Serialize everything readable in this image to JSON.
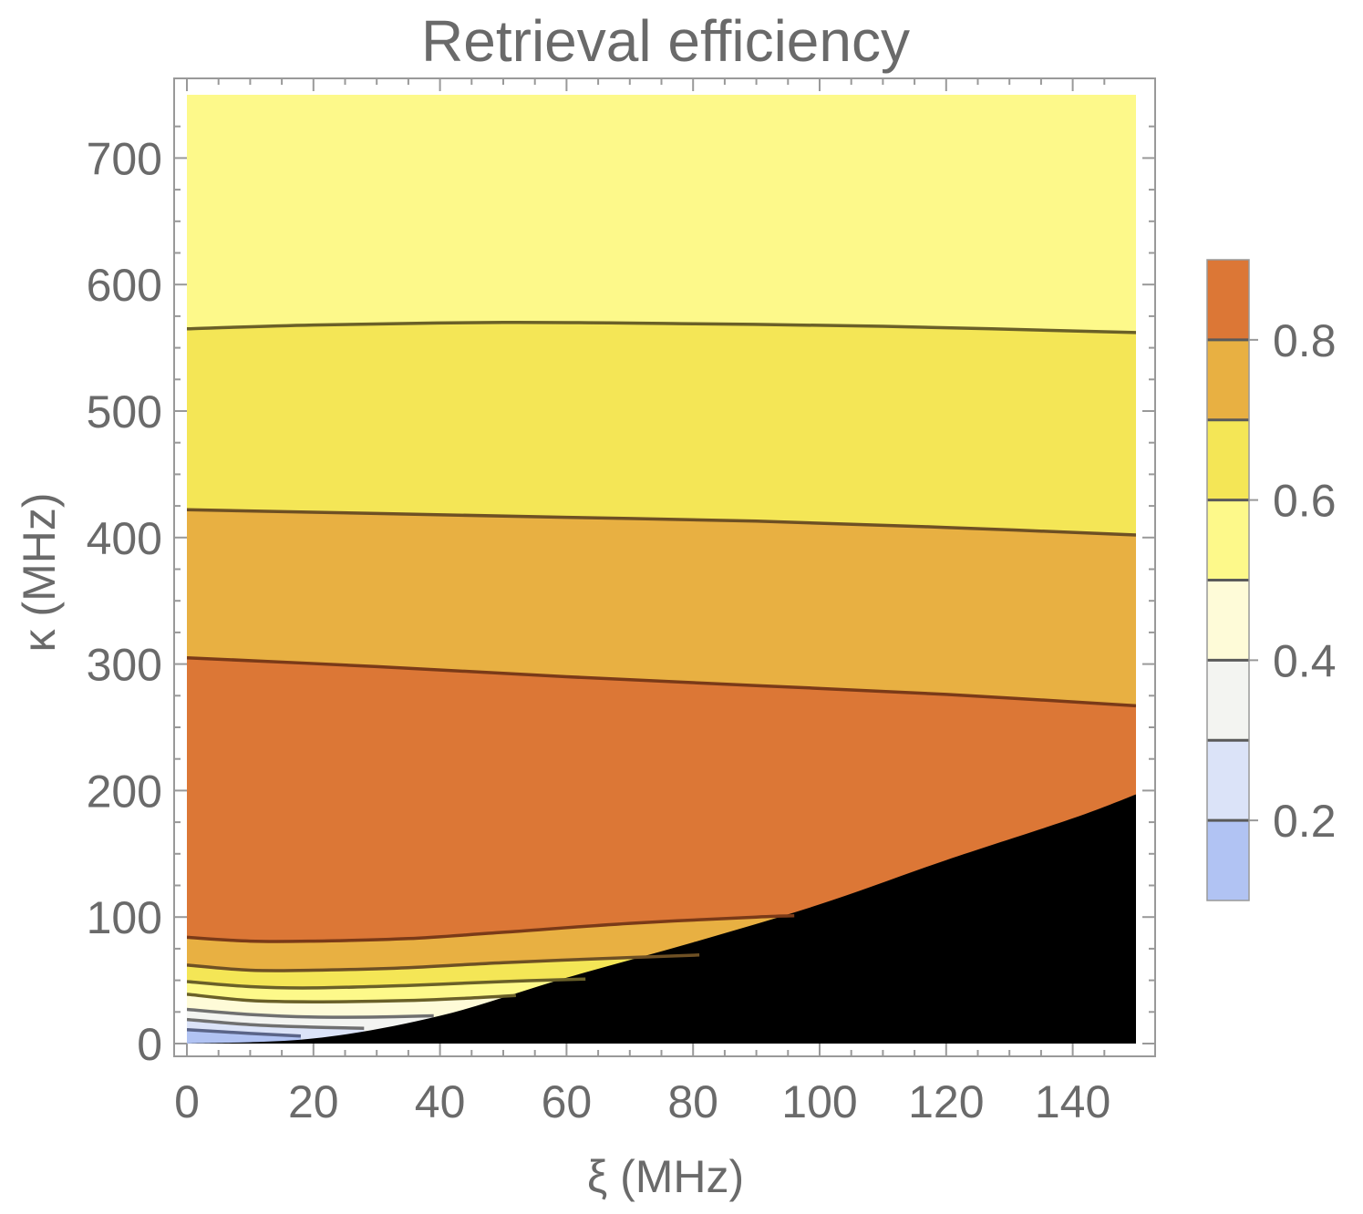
{
  "chart_data": {
    "type": "contour",
    "title": "Retrieval efficiency",
    "xlabel": "ξ (MHz)",
    "ylabel": "κ (MHz)",
    "xlim": [
      0,
      150
    ],
    "ylim": [
      0,
      750
    ],
    "x_ticks": [
      0,
      20,
      40,
      60,
      80,
      100,
      120,
      140
    ],
    "y_ticks": [
      0,
      100,
      200,
      300,
      400,
      500,
      600,
      700
    ],
    "contour_levels": [
      0.2,
      0.3,
      0.4,
      0.5,
      0.6,
      0.7,
      0.8
    ],
    "colorbar": {
      "range": [
        0.1,
        0.9
      ],
      "tick_values": [
        0.2,
        0.4,
        0.6,
        0.8
      ],
      "tick_labels": [
        "0.2",
        "0.4",
        "0.6",
        "0.8"
      ],
      "band_colors": [
        "#b1c3f3",
        "#dbe3f8",
        "#f3f4f1",
        "#fefbd8",
        "#fdf98a",
        "#f4e656",
        "#e8b042",
        "#dc7736"
      ]
    },
    "contours": [
      {
        "level": 0.6,
        "points": [
          [
            0,
            565
          ],
          [
            20,
            568
          ],
          [
            50,
            570
          ],
          [
            80,
            569
          ],
          [
            110,
            567
          ],
          [
            150,
            562
          ]
        ]
      },
      {
        "level": 0.7,
        "points": [
          [
            0,
            422
          ],
          [
            30,
            419
          ],
          [
            60,
            416
          ],
          [
            90,
            413
          ],
          [
            120,
            408
          ],
          [
            150,
            402
          ]
        ]
      },
      {
        "level": 0.8,
        "points": [
          [
            0,
            305
          ],
          [
            30,
            298
          ],
          [
            60,
            290
          ],
          [
            90,
            283
          ],
          [
            120,
            276
          ],
          [
            150,
            267
          ]
        ]
      },
      {
        "level": 0.8,
        "points": [
          [
            0,
            84
          ],
          [
            10,
            81
          ],
          [
            20,
            81
          ],
          [
            35,
            83
          ],
          [
            50,
            88
          ],
          [
            70,
            95
          ],
          [
            90,
            100
          ],
          [
            96,
            101
          ]
        ]
      },
      {
        "level": 0.7,
        "points": [
          [
            0,
            62
          ],
          [
            10,
            58
          ],
          [
            20,
            58
          ],
          [
            35,
            60
          ],
          [
            50,
            64
          ],
          [
            70,
            68
          ],
          [
            81,
            70
          ]
        ]
      },
      {
        "level": 0.6,
        "points": [
          [
            0,
            49
          ],
          [
            10,
            45
          ],
          [
            20,
            44
          ],
          [
            35,
            46
          ],
          [
            50,
            49
          ],
          [
            63,
            51
          ]
        ]
      },
      {
        "level": 0.5,
        "points": [
          [
            0,
            39
          ],
          [
            10,
            34
          ],
          [
            20,
            33
          ],
          [
            35,
            34
          ],
          [
            45,
            36
          ],
          [
            52,
            38
          ]
        ]
      },
      {
        "level": 0.4,
        "points": [
          [
            0,
            27
          ],
          [
            10,
            23
          ],
          [
            20,
            21
          ],
          [
            30,
            21
          ],
          [
            39,
            22
          ]
        ]
      },
      {
        "level": 0.3,
        "points": [
          [
            0,
            19
          ],
          [
            10,
            15
          ],
          [
            20,
            13
          ],
          [
            28,
            12
          ]
        ]
      },
      {
        "level": 0.2,
        "points": [
          [
            0,
            11
          ],
          [
            10,
            8
          ],
          [
            18,
            6
          ]
        ]
      }
    ],
    "excluded_region": {
      "color": "#000000",
      "boundary": [
        [
          0,
          0
        ],
        [
          20,
          4
        ],
        [
          40,
          22
        ],
        [
          60,
          52
        ],
        [
          80,
          80
        ],
        [
          100,
          110
        ],
        [
          120,
          145
        ],
        [
          140,
          178
        ],
        [
          150,
          197
        ]
      ]
    }
  }
}
